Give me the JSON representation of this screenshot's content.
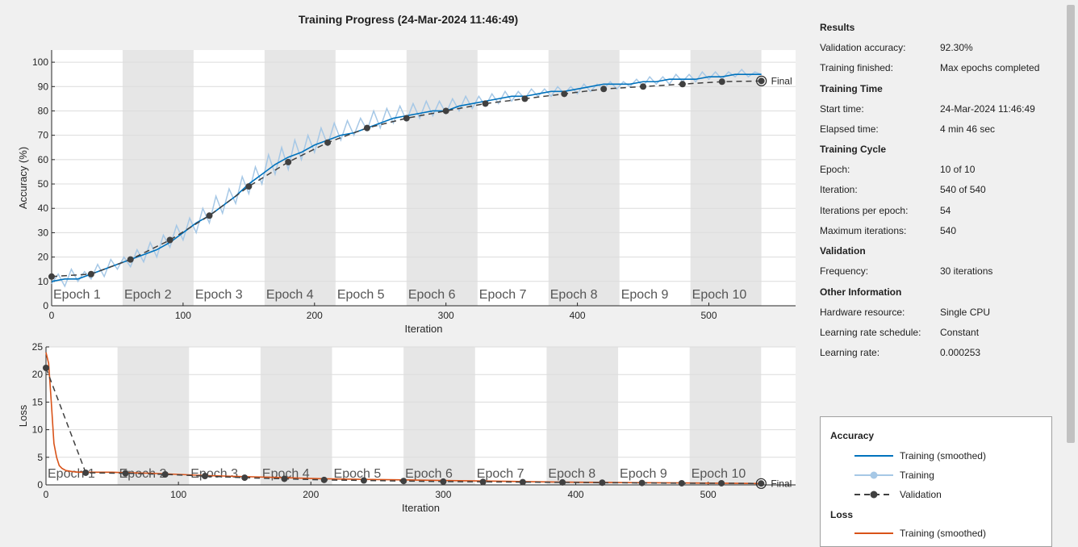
{
  "title": "Training Progress (24-Mar-2024 11:46:49)",
  "chart_data": [
    {
      "type": "line",
      "name": "accuracy",
      "ylabel": "Accuracy (%)",
      "xlabel": "Iteration",
      "xlim": [
        0,
        566
      ],
      "ylim": [
        0,
        105
      ],
      "x_ticks": [
        0,
        100,
        200,
        300,
        400,
        500
      ],
      "y_ticks": [
        0,
        10,
        20,
        30,
        40,
        50,
        60,
        70,
        80,
        90,
        100
      ],
      "epoch_labels": [
        "Epoch 1",
        "Epoch 2",
        "Epoch 3",
        "Epoch 4",
        "Epoch 5",
        "Epoch 6",
        "Epoch 7",
        "Epoch 8",
        "Epoch 9",
        "Epoch 10"
      ],
      "iterations_per_epoch": 54,
      "final_label": "Final",
      "smoothed": {
        "x": [
          0,
          10,
          20,
          30,
          40,
          50,
          60,
          70,
          80,
          90,
          100,
          110,
          120,
          130,
          140,
          150,
          160,
          170,
          180,
          190,
          200,
          210,
          220,
          230,
          240,
          250,
          260,
          270,
          280,
          290,
          300,
          310,
          320,
          330,
          340,
          350,
          360,
          370,
          380,
          390,
          400,
          410,
          420,
          430,
          440,
          450,
          460,
          470,
          480,
          490,
          500,
          510,
          520,
          530,
          540
        ],
        "y": [
          10,
          11,
          11,
          13,
          15,
          17,
          19,
          21,
          23,
          26,
          30,
          34,
          37,
          41,
          45,
          50,
          54,
          58,
          61,
          63,
          66,
          68,
          70,
          71,
          73,
          75,
          77,
          78,
          79,
          80,
          80,
          82,
          83,
          84,
          85,
          86,
          86,
          87,
          88,
          88,
          89,
          90,
          91,
          91,
          91,
          92,
          92,
          93,
          93,
          93,
          94,
          94,
          95,
          95,
          95
        ]
      },
      "training": {
        "x": [
          0,
          5,
          10,
          15,
          20,
          25,
          30,
          35,
          40,
          45,
          50,
          55,
          60,
          65,
          70,
          75,
          80,
          85,
          90,
          95,
          100,
          105,
          110,
          115,
          120,
          125,
          130,
          135,
          140,
          145,
          150,
          155,
          160,
          165,
          170,
          175,
          180,
          185,
          190,
          195,
          200,
          205,
          210,
          215,
          220,
          225,
          230,
          235,
          240,
          245,
          250,
          255,
          260,
          265,
          270,
          275,
          280,
          285,
          290,
          295,
          300,
          305,
          310,
          315,
          320,
          325,
          330,
          335,
          340,
          345,
          350,
          355,
          360,
          365,
          370,
          375,
          380,
          385,
          390,
          395,
          400,
          405,
          410,
          415,
          420,
          425,
          430,
          435,
          440,
          445,
          450,
          455,
          460,
          465,
          470,
          475,
          480,
          485,
          490,
          495,
          500,
          505,
          510,
          515,
          520,
          525,
          530,
          535,
          540
        ],
        "y": [
          9,
          13,
          8,
          15,
          10,
          14,
          11,
          17,
          12,
          19,
          15,
          20,
          16,
          23,
          18,
          26,
          20,
          29,
          24,
          33,
          27,
          36,
          30,
          40,
          34,
          45,
          38,
          48,
          42,
          53,
          46,
          57,
          50,
          62,
          54,
          65,
          56,
          68,
          60,
          70,
          63,
          73,
          66,
          75,
          68,
          76,
          70,
          77,
          72,
          80,
          73,
          81,
          75,
          82,
          76,
          83,
          77,
          84,
          78,
          84,
          79,
          85,
          80,
          86,
          81,
          86,
          82,
          87,
          83,
          88,
          84,
          88,
          85,
          89,
          86,
          89,
          86,
          90,
          87,
          90,
          87,
          91,
          88,
          91,
          89,
          92,
          89,
          92,
          90,
          93,
          90,
          94,
          91,
          94,
          91,
          95,
          92,
          95,
          92,
          96,
          93,
          96,
          93,
          96,
          94,
          97,
          94,
          96,
          95
        ]
      },
      "validation": {
        "x": [
          0,
          30,
          60,
          90,
          120,
          150,
          180,
          210,
          240,
          270,
          300,
          330,
          360,
          390,
          420,
          450,
          480,
          510,
          540
        ],
        "y": [
          12,
          13,
          19,
          27,
          37,
          49,
          59,
          67,
          73,
          77,
          80,
          83,
          85,
          87,
          89,
          90,
          91,
          92,
          92.3
        ]
      }
    },
    {
      "type": "line",
      "name": "loss",
      "ylabel": "Loss",
      "xlabel": "Iteration",
      "xlim": [
        0,
        566
      ],
      "ylim": [
        0,
        25
      ],
      "x_ticks": [
        0,
        100,
        200,
        300,
        400,
        500
      ],
      "y_ticks": [
        0,
        5,
        10,
        15,
        20,
        25
      ],
      "epoch_labels": [
        "Epoch 1",
        "Epoch 2",
        "Epoch 3",
        "Epoch 4",
        "Epoch 5",
        "Epoch 6",
        "Epoch 7",
        "Epoch 8",
        "Epoch 9",
        "Epoch 10"
      ],
      "iterations_per_epoch": 54,
      "final_label": "Final",
      "smoothed": {
        "x": [
          0,
          2,
          4,
          6,
          8,
          10,
          12,
          15,
          20,
          25,
          30,
          40,
          50,
          60,
          80,
          100,
          120,
          150,
          180,
          210,
          240,
          270,
          300,
          330,
          360,
          390,
          420,
          450,
          480,
          510,
          540
        ],
        "y": [
          24,
          22,
          15,
          7.5,
          5,
          3.5,
          3,
          2.6,
          2.4,
          2.3,
          2.3,
          2.3,
          2.3,
          2.2,
          2.1,
          1.9,
          1.7,
          1.5,
          1.3,
          1.1,
          1.0,
          0.9,
          0.8,
          0.7,
          0.6,
          0.5,
          0.45,
          0.4,
          0.35,
          0.3,
          0.25
        ]
      },
      "validation": {
        "x": [
          0,
          30,
          60,
          90,
          120,
          150,
          180,
          210,
          240,
          270,
          300,
          330,
          360,
          390,
          420,
          450,
          480,
          510,
          540
        ],
        "y": [
          21.2,
          2.2,
          2.1,
          1.9,
          1.6,
          1.3,
          1.1,
          0.9,
          0.8,
          0.7,
          0.6,
          0.55,
          0.5,
          0.45,
          0.4,
          0.35,
          0.3,
          0.3,
          0.25
        ]
      }
    }
  ],
  "panel": {
    "sections": [
      {
        "title": "Results",
        "rows": [
          {
            "k": "Validation accuracy:",
            "v": "92.30%"
          },
          {
            "k": "Training finished:",
            "v": "Max epochs completed"
          }
        ]
      },
      {
        "title": "Training Time",
        "rows": [
          {
            "k": "Start time:",
            "v": "24-Mar-2024 11:46:49"
          },
          {
            "k": "Elapsed time:",
            "v": "4 min 46 sec"
          }
        ]
      },
      {
        "title": "Training Cycle",
        "rows": [
          {
            "k": "Epoch:",
            "v": "10 of 10"
          },
          {
            "k": "Iteration:",
            "v": "540 of 540"
          },
          {
            "k": "Iterations per epoch:",
            "v": "54"
          },
          {
            "k": "Maximum iterations:",
            "v": "540"
          }
        ]
      },
      {
        "title": "Validation",
        "rows": [
          {
            "k": "Frequency:",
            "v": "30 iterations"
          }
        ]
      },
      {
        "title": "Other Information",
        "rows": [
          {
            "k": "Hardware resource:",
            "v": "Single CPU"
          },
          {
            "k": "Learning rate schedule:",
            "v": "Constant"
          },
          {
            "k": "Learning rate:",
            "v": "0.000253"
          }
        ]
      }
    ]
  },
  "legend": {
    "accuracy_title": "Accuracy",
    "loss_title": "Loss",
    "items": {
      "smoothed": "Training (smoothed)",
      "training": "Training",
      "validation": "Validation",
      "loss_smoothed": "Training (smoothed)"
    }
  },
  "colors": {
    "accuracy_smoothed": "#0072bd",
    "accuracy_training": "#a6c8e6",
    "validation": "#404040",
    "loss_smoothed": "#d95319",
    "epoch_band": "#e6e6e6",
    "grid": "#dcdcdc"
  }
}
